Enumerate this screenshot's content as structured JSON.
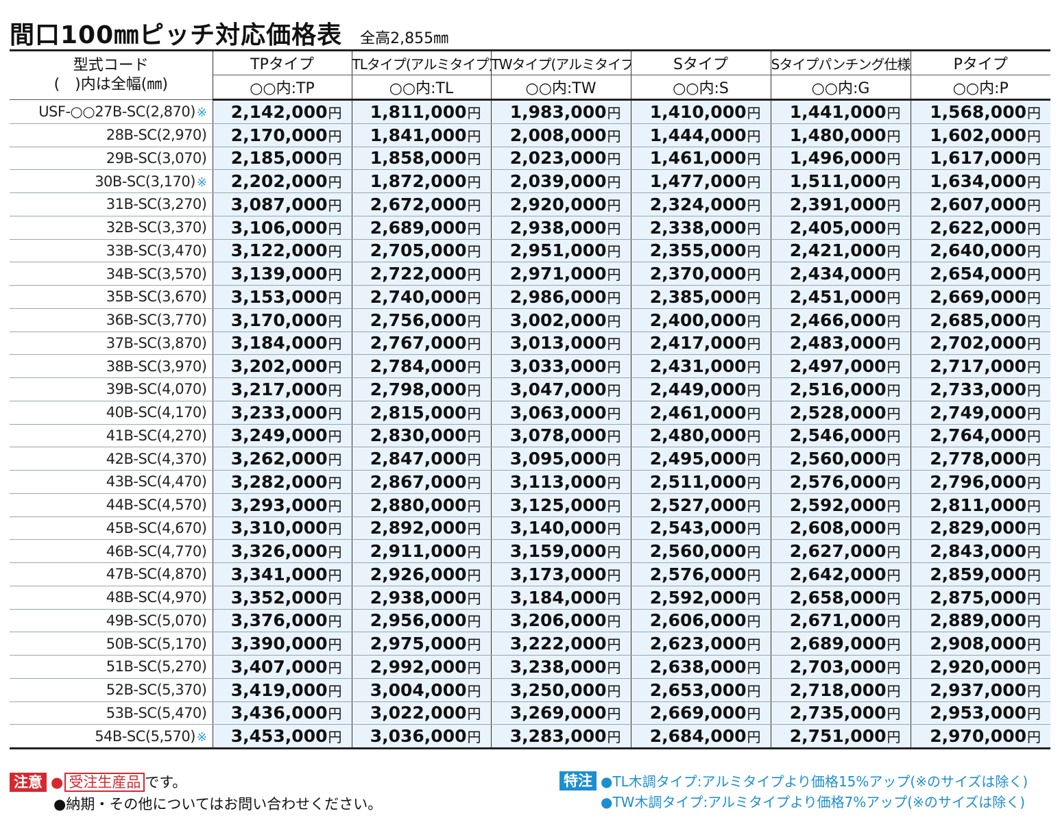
{
  "title": {
    "main": "間口100㎜ピッチ対応価格表",
    "sub": "全高2,855㎜"
  },
  "header": {
    "code_label_1": "型式コード",
    "code_label_2": "(　)内は全幅(㎜)",
    "columns": [
      {
        "name": "TPタイプ",
        "code": "○○内:TP"
      },
      {
        "name": "TLタイプ(アルミタイプ)",
        "code": "○○内:TL"
      },
      {
        "name": "TWタイプ(アルミタイプ)",
        "code": "○○内:TW"
      },
      {
        "name": "Sタイプ",
        "code": "○○内:S"
      },
      {
        "name": "Sタイプパンチング仕様",
        "code": "○○内:G"
      },
      {
        "name": "Pタイプ",
        "code": "○○内:P"
      }
    ]
  },
  "currency": "円",
  "mark": "※",
  "rows": [
    {
      "code": "USF-○○27B-SC(2,870)",
      "mark": true,
      "prices": [
        "2,142,000",
        "1,811,000",
        "1,983,000",
        "1,410,000",
        "1,441,000",
        "1,568,000"
      ]
    },
    {
      "code": "28B-SC(2,970)",
      "mark": false,
      "prices": [
        "2,170,000",
        "1,841,000",
        "2,008,000",
        "1,444,000",
        "1,480,000",
        "1,602,000"
      ]
    },
    {
      "code": "29B-SC(3,070)",
      "mark": false,
      "prices": [
        "2,185,000",
        "1,858,000",
        "2,023,000",
        "1,461,000",
        "1,496,000",
        "1,617,000"
      ]
    },
    {
      "code": "30B-SC(3,170)",
      "mark": true,
      "prices": [
        "2,202,000",
        "1,872,000",
        "2,039,000",
        "1,477,000",
        "1,511,000",
        "1,634,000"
      ]
    },
    {
      "code": "31B-SC(3,270)",
      "mark": false,
      "prices": [
        "3,087,000",
        "2,672,000",
        "2,920,000",
        "2,324,000",
        "2,391,000",
        "2,607,000"
      ]
    },
    {
      "code": "32B-SC(3,370)",
      "mark": false,
      "prices": [
        "3,106,000",
        "2,689,000",
        "2,938,000",
        "2,338,000",
        "2,405,000",
        "2,622,000"
      ]
    },
    {
      "code": "33B-SC(3,470)",
      "mark": false,
      "prices": [
        "3,122,000",
        "2,705,000",
        "2,951,000",
        "2,355,000",
        "2,421,000",
        "2,640,000"
      ]
    },
    {
      "code": "34B-SC(3,570)",
      "mark": false,
      "prices": [
        "3,139,000",
        "2,722,000",
        "2,971,000",
        "2,370,000",
        "2,434,000",
        "2,654,000"
      ]
    },
    {
      "code": "35B-SC(3,670)",
      "mark": false,
      "prices": [
        "3,153,000",
        "2,740,000",
        "2,986,000",
        "2,385,000",
        "2,451,000",
        "2,669,000"
      ]
    },
    {
      "code": "36B-SC(3,770)",
      "mark": false,
      "prices": [
        "3,170,000",
        "2,756,000",
        "3,002,000",
        "2,400,000",
        "2,466,000",
        "2,685,000"
      ]
    },
    {
      "code": "37B-SC(3,870)",
      "mark": false,
      "prices": [
        "3,184,000",
        "2,767,000",
        "3,013,000",
        "2,417,000",
        "2,483,000",
        "2,702,000"
      ]
    },
    {
      "code": "38B-SC(3,970)",
      "mark": false,
      "prices": [
        "3,202,000",
        "2,784,000",
        "3,033,000",
        "2,431,000",
        "2,497,000",
        "2,717,000"
      ]
    },
    {
      "code": "39B-SC(4,070)",
      "mark": false,
      "prices": [
        "3,217,000",
        "2,798,000",
        "3,047,000",
        "2,449,000",
        "2,516,000",
        "2,733,000"
      ]
    },
    {
      "code": "40B-SC(4,170)",
      "mark": false,
      "prices": [
        "3,233,000",
        "2,815,000",
        "3,063,000",
        "2,461,000",
        "2,528,000",
        "2,749,000"
      ]
    },
    {
      "code": "41B-SC(4,270)",
      "mark": false,
      "prices": [
        "3,249,000",
        "2,830,000",
        "3,078,000",
        "2,480,000",
        "2,546,000",
        "2,764,000"
      ]
    },
    {
      "code": "42B-SC(4,370)",
      "mark": false,
      "prices": [
        "3,262,000",
        "2,847,000",
        "3,095,000",
        "2,495,000",
        "2,560,000",
        "2,778,000"
      ]
    },
    {
      "code": "43B-SC(4,470)",
      "mark": false,
      "prices": [
        "3,282,000",
        "2,867,000",
        "3,113,000",
        "2,511,000",
        "2,576,000",
        "2,796,000"
      ]
    },
    {
      "code": "44B-SC(4,570)",
      "mark": false,
      "prices": [
        "3,293,000",
        "2,880,000",
        "3,125,000",
        "2,527,000",
        "2,592,000",
        "2,811,000"
      ]
    },
    {
      "code": "45B-SC(4,670)",
      "mark": false,
      "prices": [
        "3,310,000",
        "2,892,000",
        "3,140,000",
        "2,543,000",
        "2,608,000",
        "2,829,000"
      ]
    },
    {
      "code": "46B-SC(4,770)",
      "mark": false,
      "prices": [
        "3,326,000",
        "2,911,000",
        "3,159,000",
        "2,560,000",
        "2,627,000",
        "2,843,000"
      ]
    },
    {
      "code": "47B-SC(4,870)",
      "mark": false,
      "prices": [
        "3,341,000",
        "2,926,000",
        "3,173,000",
        "2,576,000",
        "2,642,000",
        "2,859,000"
      ]
    },
    {
      "code": "48B-SC(4,970)",
      "mark": false,
      "prices": [
        "3,352,000",
        "2,938,000",
        "3,184,000",
        "2,592,000",
        "2,658,000",
        "2,875,000"
      ]
    },
    {
      "code": "49B-SC(5,070)",
      "mark": false,
      "prices": [
        "3,376,000",
        "2,956,000",
        "3,206,000",
        "2,606,000",
        "2,671,000",
        "2,889,000"
      ]
    },
    {
      "code": "50B-SC(5,170)",
      "mark": false,
      "prices": [
        "3,390,000",
        "2,975,000",
        "3,222,000",
        "2,623,000",
        "2,689,000",
        "2,908,000"
      ]
    },
    {
      "code": "51B-SC(5,270)",
      "mark": false,
      "prices": [
        "3,407,000",
        "2,992,000",
        "3,238,000",
        "2,638,000",
        "2,703,000",
        "2,920,000"
      ]
    },
    {
      "code": "52B-SC(5,370)",
      "mark": false,
      "prices": [
        "3,419,000",
        "3,004,000",
        "3,250,000",
        "2,653,000",
        "2,718,000",
        "2,937,000"
      ]
    },
    {
      "code": "53B-SC(5,470)",
      "mark": false,
      "prices": [
        "3,436,000",
        "3,022,000",
        "3,269,000",
        "2,669,000",
        "2,735,000",
        "2,953,000"
      ]
    },
    {
      "code": "54B-SC(5,570)",
      "mark": true,
      "prices": [
        "3,453,000",
        "3,036,000",
        "3,283,000",
        "2,684,000",
        "2,751,000",
        "2,970,000"
      ]
    }
  ],
  "notes": {
    "caution_label": "注意",
    "bullet": "●",
    "made_to_order": "受注生産品",
    "desu": "です。",
    "line2": "●納期・その他についてはお問い合わせください。",
    "special_label": "特注",
    "special_1": "●TL木調タイプ:アルミタイプより価格15%アップ(※のサイズは除く)",
    "special_2": "●TW木調タイプ:アルミタイプより価格7%アップ(※のサイズは除く)"
  },
  "colors": {
    "price_bg": "#e9f3fb",
    "caution_red": "#d7282f",
    "special_blue": "#1d8fd0",
    "mark_blue": "#2a9fd6"
  }
}
